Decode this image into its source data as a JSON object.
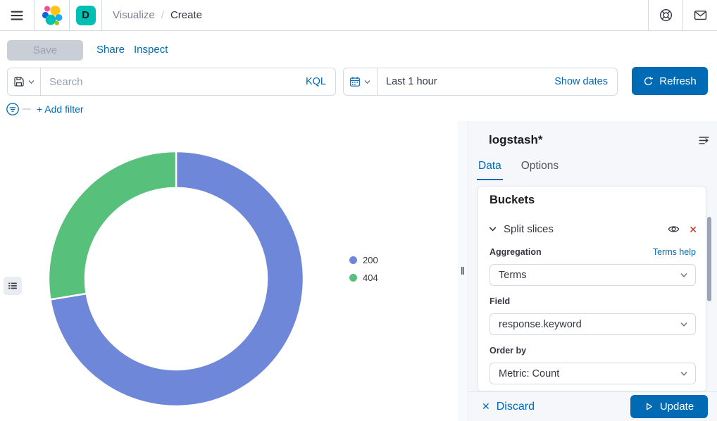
{
  "topnav": {
    "breadcrumbs": [
      {
        "label": "Visualize"
      },
      {
        "label": "Create"
      }
    ],
    "breadcrumb_separator": "/",
    "space_badge": "D"
  },
  "actionbar": {
    "save_label": "Save",
    "share_label": "Share",
    "inspect_label": "Inspect"
  },
  "querybar": {
    "search_placeholder": "Search",
    "search_value": "",
    "query_language": "KQL",
    "time_value": "Last 1 hour",
    "show_dates_label": "Show dates",
    "refresh_label": "Refresh"
  },
  "filterbar": {
    "add_filter_label": "+ Add filter"
  },
  "panel": {
    "title": "logstash*",
    "tabs": [
      {
        "label": "Data",
        "active": true
      },
      {
        "label": "Options",
        "active": false
      }
    ],
    "card": {
      "heading": "Buckets",
      "accordion_label": "Split slices",
      "fields": [
        {
          "label": "Aggregation",
          "value": "Terms",
          "help": "Terms help"
        },
        {
          "label": "Field",
          "value": "response.keyword"
        },
        {
          "label": "Order by",
          "value": "Metric: Count"
        }
      ]
    },
    "footer": {
      "discard_label": "Discard",
      "update_label": "Update"
    }
  },
  "icon_glyphs": {
    "remove_x": "✕",
    "discard_x": "✕",
    "resize_grip": "‖"
  },
  "colors": {
    "accent": "#006BB4",
    "danger": "#BD271E",
    "space_badge": "#00BFB3",
    "panel_bg": "#F5F7FA",
    "border": "#D3DAE6"
  },
  "chart_data": {
    "type": "pie",
    "subtype": "donut",
    "title": "",
    "categories": [
      "200",
      "404"
    ],
    "values": [
      72.4,
      27.6
    ],
    "value_note": "percent share estimated from slice angles; no numeric labels shown in chart",
    "colors": [
      "#6F87D8",
      "#57C17B"
    ],
    "start_angle_deg": 0,
    "direction": "clockwise",
    "inner_radius_ratio": 0.71,
    "legend": {
      "position": "top-right",
      "entries": [
        "200",
        "404"
      ]
    }
  }
}
